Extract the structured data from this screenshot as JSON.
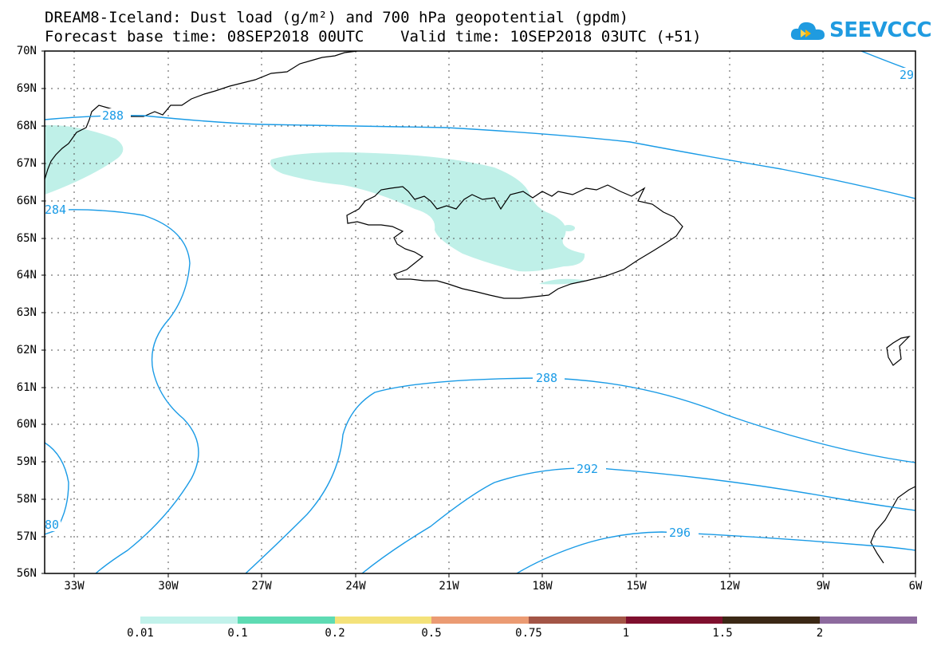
{
  "title": {
    "line1": "DREAM8-Iceland: Dust load (g/m²) and 700 hPa geopotential (gpdm)",
    "line2": "Forecast base time: 08SEP2018 00UTC    Valid time: 10SEP2018 03UTC (+51)"
  },
  "logo": {
    "text": "SEEVCCC",
    "icon": "cloud-arrow-icon",
    "color": "#1f9be0"
  },
  "map": {
    "lat_labels": [
      "70N",
      "69N",
      "68N",
      "67N",
      "66N",
      "65N",
      "64N",
      "63N",
      "62N",
      "61N",
      "60N",
      "59N",
      "58N",
      "57N",
      "56N"
    ],
    "lon_labels": [
      "33W",
      "30W",
      "27W",
      "24W",
      "21W",
      "18W",
      "15W",
      "12W",
      "9W",
      "6W"
    ],
    "contour_labels": [
      "288",
      "284",
      "288",
      "292",
      "296",
      "29",
      "80"
    ],
    "contour_color": "#1a9be6",
    "dust_color": "#bff0e8"
  },
  "legend": {
    "labels": [
      "0.01",
      "0.1",
      "0.2",
      "0.5",
      "0.75",
      "1",
      "1.5",
      "2"
    ],
    "colors": [
      "#c2f2eb",
      "#5edbb3",
      "#f4e27a",
      "#eb9b73",
      "#a35546",
      "#7f0f2e",
      "#3b2815",
      "#8d6a9e"
    ]
  }
}
